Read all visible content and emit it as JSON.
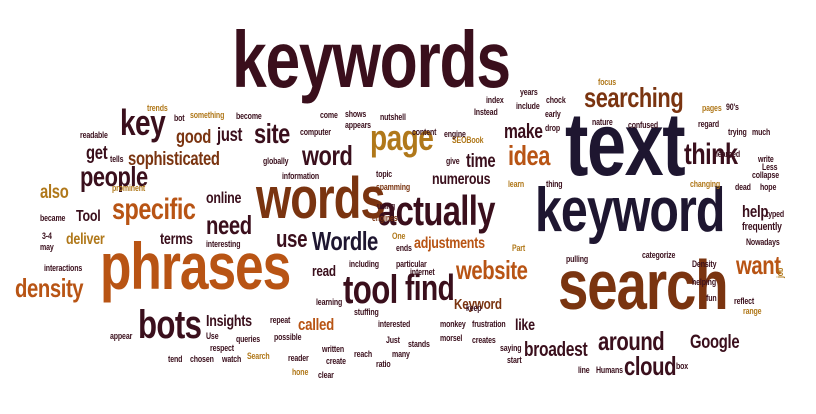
{
  "colors": {
    "dark": "#3a0f1c",
    "navy": "#1e1630",
    "brown": "#7a3410",
    "orange": "#b85414",
    "tan": "#b0781a"
  },
  "words": {
    "keywords": "keywords",
    "text": "text",
    "keyword": "keyword",
    "search": "search",
    "phrases": "phrases",
    "words": "words",
    "actually": "actually",
    "tool": "tool",
    "find": "find",
    "bots": "bots",
    "searching": "searching",
    "page": "page",
    "key": "key",
    "specific": "specific",
    "people": "people",
    "sophisticated": "sophisticated",
    "site": "site",
    "word": "word",
    "idea": "idea",
    "think": "think",
    "density": "density",
    "need": "need",
    "use": "use",
    "Wordle": "Wordle",
    "website": "website",
    "around": "around",
    "cloud": "cloud",
    "want": "want",
    "broadest": "broadest",
    "Google": "Google",
    "make": "make",
    "good": "good",
    "just": "just",
    "get": "get",
    "also": "also",
    "time": "time",
    "numerous": "numerous",
    "adjustments": "adjustments",
    "deliver": "deliver",
    "terms": "terms",
    "Tool": "Tool",
    "online": "online",
    "Insights": "Insights",
    "called": "called",
    "read": "read",
    "like": "like",
    "Keyword": "Keyword",
    "help": "help",
    "frequently": "frequently",
    "trends": "trends",
    "something": "something",
    "become": "become",
    "bot": "bot",
    "readable": "readable",
    "tells": "tells",
    "computer": "computer",
    "come": "come",
    "shows": "shows",
    "appears": "appears",
    "nutshell": "nutshell",
    "content": "content",
    "SEOBook": "SEOBook",
    "Instead": "Instead",
    "index": "index",
    "years": "years",
    "include": "include",
    "chock": "chock",
    "early": "early",
    "focus": "focus",
    "pages": "pages",
    "90s": "90's",
    "nature": "nature",
    "confused": "confused",
    "regard": "regard",
    "trying": "trying",
    "much": "much",
    "globally": "globally",
    "information": "information",
    "topic": "topic",
    "spamming": "spamming",
    "engines": "engines",
    "using": "using",
    "engine": "engine",
    "give": "give",
    "learn": "learn",
    "drop": "drop",
    "thing": "thing",
    "changing": "changing",
    "learned": "learned",
    "write": "write",
    "collapse": "collapse",
    "Less": "Less",
    "hope": "hope",
    "dead": "dead",
    "prominent": "prominent",
    "became": "became",
    "interesting": "interesting",
    "three_four": "3-4",
    "may": "may",
    "interactions": "interactions",
    "including": "including",
    "One": "One",
    "ends": "ends",
    "particular": "particular",
    "internet": "internet",
    "Part": "Part",
    "pulling": "pulling",
    "categorize": "categorize",
    "Density": "Density",
    "typed": "typed",
    "Nowadays": "Nowadays",
    "helping": "helping",
    "fun": "fun",
    "reflect": "reflect",
    "range": "range",
    "job": "job",
    "learning": "learning",
    "keep": "keep",
    "stuffing": "stuffing",
    "interested": "interested",
    "monkey": "monkey",
    "frustration": "frustration",
    "repeat": "repeat",
    "queries": "queries",
    "possible": "possible",
    "Use": "Use",
    "respect": "respect",
    "chosen": "chosen",
    "watch": "watch",
    "tend": "tend",
    "appear": "appear",
    "Search": "Search",
    "reader": "reader",
    "written": "written",
    "create": "create",
    "reach": "reach",
    "Just": "Just",
    "stands": "stands",
    "many": "many",
    "morsel": "morsel",
    "creates": "creates",
    "saying": "saying",
    "start": "start",
    "hone": "hone",
    "clear": "clear",
    "ratio": "ratio",
    "line": "line",
    "Humans": "Humans",
    "box": "box"
  }
}
